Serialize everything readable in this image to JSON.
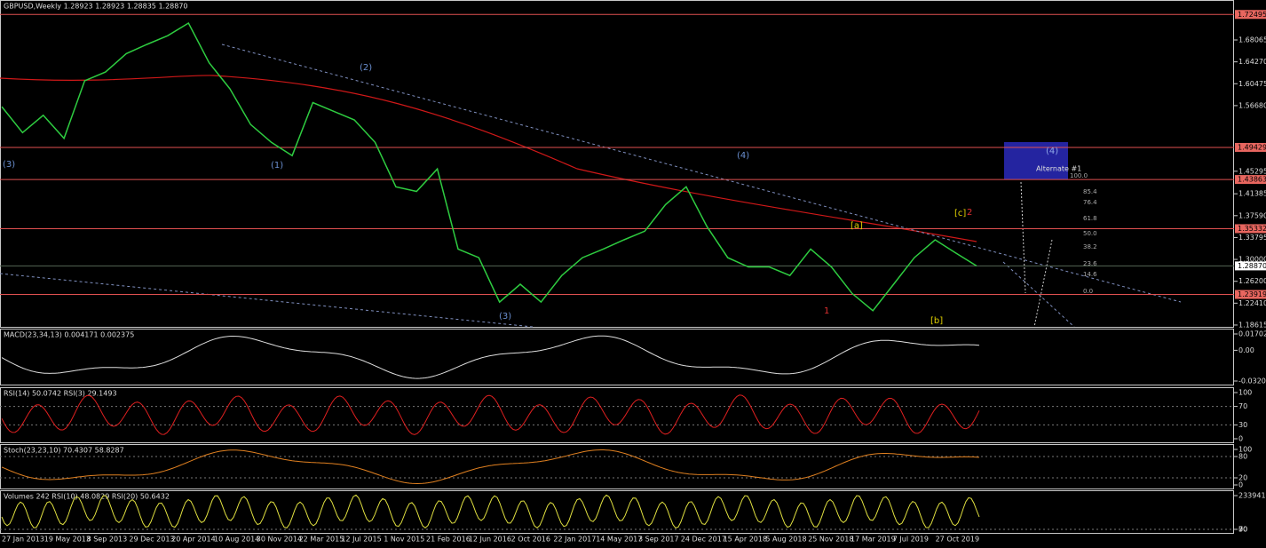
{
  "header": {
    "title": "GBPUSD,Weekly  1.28923 1.28923 1.28835 1.28870"
  },
  "main": {
    "ylim": [
      1.183,
      1.75
    ],
    "price_ticks": [
      {
        "value": 1.68065,
        "label": "1.68065"
      },
      {
        "value": 1.6427,
        "label": "1.64270"
      },
      {
        "value": 1.60475,
        "label": "1.60475"
      },
      {
        "value": 1.5668,
        "label": "1.56680"
      },
      {
        "value": 1.45295,
        "label": "1.45295"
      },
      {
        "value": 1.41385,
        "label": "1.41385"
      },
      {
        "value": 1.3759,
        "label": "1.37590"
      },
      {
        "value": 1.33795,
        "label": "1.33795"
      },
      {
        "value": 1.3,
        "label": "1.30000"
      },
      {
        "value": 1.262,
        "label": "1.26200"
      },
      {
        "value": 1.2241,
        "label": "1.22410"
      },
      {
        "value": 1.18615,
        "label": "1.18615"
      }
    ],
    "levels": [
      {
        "value": 1.72495,
        "label": "1.72495"
      },
      {
        "value": 1.49429,
        "label": "1.49429"
      },
      {
        "value": 1.43863,
        "label": "1.43863"
      },
      {
        "value": 1.35332,
        "label": "1.35332"
      },
      {
        "value": 1.23919,
        "label": "1.23919"
      }
    ],
    "current": {
      "value": 1.2887,
      "label": "1.28870"
    },
    "closes": [
      1.565,
      1.52,
      1.55,
      1.51,
      1.61,
      1.625,
      1.657,
      1.673,
      1.688,
      1.71,
      1.641,
      1.596,
      1.534,
      1.503,
      1.48,
      1.572,
      1.557,
      1.542,
      1.503,
      1.426,
      1.418,
      1.457,
      1.318,
      1.303,
      1.226,
      1.257,
      1.226,
      1.272,
      1.303,
      1.318,
      1.334,
      1.349,
      1.395,
      1.426,
      1.357,
      1.303,
      1.287,
      1.287,
      1.272,
      1.318,
      1.287,
      1.241,
      1.211,
      1.257,
      1.303,
      1.334,
      1.311,
      1.2887
    ],
    "wave_labels": [
      "(3)",
      "(1)",
      "(2)",
      "(3)",
      "(4)",
      "[a]",
      "1",
      "[c]",
      "2",
      "[b]",
      "(4)",
      "Alternate #1"
    ],
    "fib_levels": [
      "100.0",
      "85.4",
      "76.4",
      "61.8",
      "50.0",
      "38.2",
      "23.6",
      "14.6",
      "0.0"
    ],
    "dates": [
      "27 Jan 2013",
      "19 May 2013",
      "8 Sep 2013",
      "29 Dec 2013",
      "20 Apr 2014",
      "10 Aug 2014",
      "30 Nov 2014",
      "22 Mar 2015",
      "12 Jul 2015",
      "1 Nov 2015",
      "21 Feb 2016",
      "12 Jun 2016",
      "2 Oct 2016",
      "22 Jan 2017",
      "14 May 2017",
      "3 Sep 2017",
      "24 Dec 2017",
      "15 Apr 2018",
      "5 Aug 2018",
      "25 Nov 2018",
      "17 Mar 2019",
      "7 Jul 2019",
      "27 Oct 2019"
    ]
  },
  "indicators": [
    {
      "title": "MACD(23,34,13) 0.004171 0.002375",
      "ticks": [
        {
          "value": 0.017025,
          "label": "0.017025"
        },
        {
          "value": 0,
          "label": "0.00"
        },
        {
          "value": -0.03203,
          "label": "-0.03203"
        }
      ]
    },
    {
      "title": "RSI(14) 50.0742  RSI(3) 29.1493",
      "ticks": [
        100,
        70,
        30,
        0
      ]
    },
    {
      "title": "Stoch(23,23,10) 70.4307 58.8287",
      "ticks": [
        100,
        80,
        20,
        0
      ]
    },
    {
      "title": "Volumes 242  RSI(10) 48.0829  RSI(20) 50.6432",
      "ticks": [
        2339415,
        70,
        30,
        0
      ]
    }
  ]
}
